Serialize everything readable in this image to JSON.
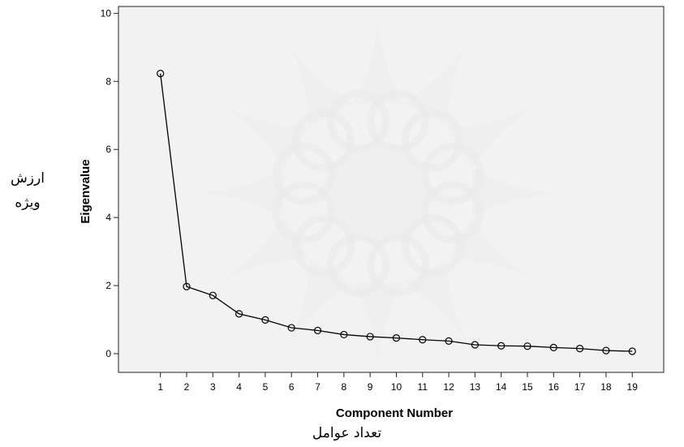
{
  "chart_data": {
    "type": "line",
    "title": "",
    "xlabel": "Component Number",
    "ylabel": "Eigenvalue",
    "xlabel_fa": "تعداد عوامل",
    "ylabel_fa": [
      "ارزش",
      "ویژه"
    ],
    "x": [
      1,
      2,
      3,
      4,
      5,
      6,
      7,
      8,
      9,
      10,
      11,
      12,
      13,
      14,
      15,
      16,
      17,
      18,
      19
    ],
    "series": [
      {
        "values": [
          8.23,
          1.97,
          1.71,
          1.17,
          0.99,
          0.76,
          0.68,
          0.56,
          0.5,
          0.46,
          0.41,
          0.37,
          0.26,
          0.23,
          0.22,
          0.18,
          0.15,
          0.09,
          0.07
        ]
      }
    ],
    "yticks": [
      0,
      2,
      4,
      6,
      8,
      10
    ],
    "ylim": [
      -0.55,
      10.2
    ],
    "xlim": [
      -0.6,
      20.2
    ],
    "grid": false,
    "colors": {
      "plot_background": "#f0f0f0",
      "line": "#000000",
      "marker": "#000000",
      "watermark": "#c8c8c8"
    }
  }
}
